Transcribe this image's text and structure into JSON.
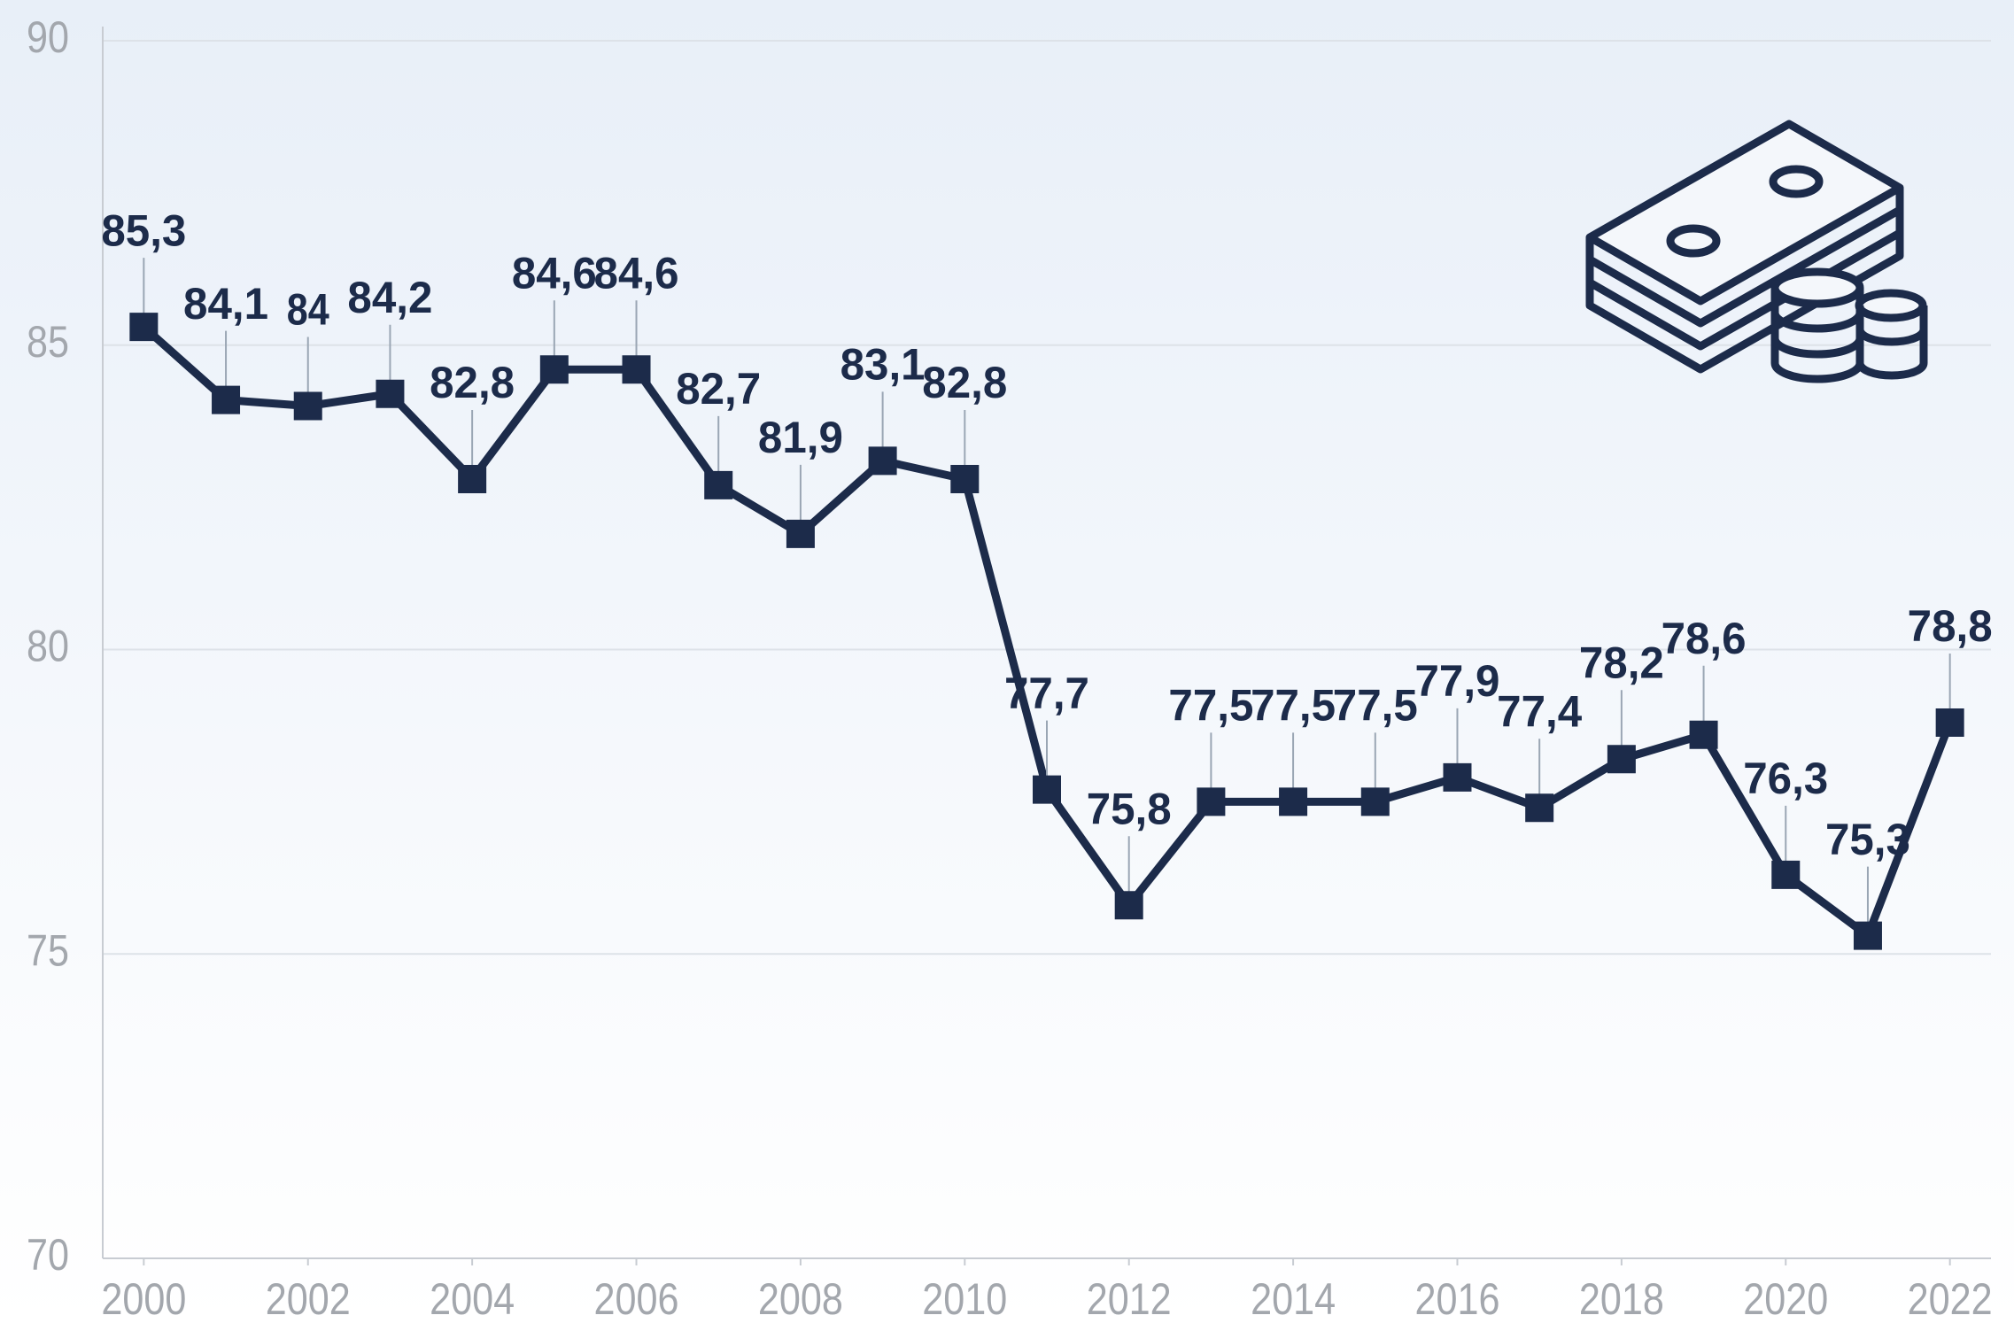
{
  "chart_data": {
    "type": "line",
    "x": [
      2000,
      2001,
      2002,
      2003,
      2004,
      2005,
      2006,
      2007,
      2008,
      2009,
      2010,
      2011,
      2012,
      2013,
      2014,
      2015,
      2016,
      2017,
      2018,
      2019,
      2020,
      2021,
      2022
    ],
    "values": [
      85.3,
      84.1,
      84,
      84.2,
      82.8,
      84.6,
      84.6,
      82.7,
      81.9,
      83.1,
      82.8,
      77.7,
      75.8,
      77.5,
      77.5,
      77.5,
      77.9,
      77.4,
      78.2,
      78.6,
      76.3,
      75.3,
      78.8
    ],
    "value_labels": [
      "85,3",
      "84,1",
      "84",
      "84,2",
      "82,8",
      "84,6",
      "84,6",
      "82,7",
      "81,9",
      "83,1",
      "82,8",
      "77,7",
      "75,8",
      "77,5",
      "77,5",
      "77,5",
      "77,9",
      "77,4",
      "78,2",
      "78,6",
      "76,3",
      "75,3",
      "78,8"
    ],
    "color": "#1c2b4a",
    "xlim": [
      1999.5,
      2022.5
    ],
    "xticks": [
      2000,
      2002,
      2004,
      2006,
      2008,
      2010,
      2012,
      2014,
      2016,
      2018,
      2020,
      2022
    ],
    "ylim": [
      70,
      90
    ],
    "yticks": [
      70,
      75,
      80,
      85,
      90
    ],
    "grid": true
  }
}
